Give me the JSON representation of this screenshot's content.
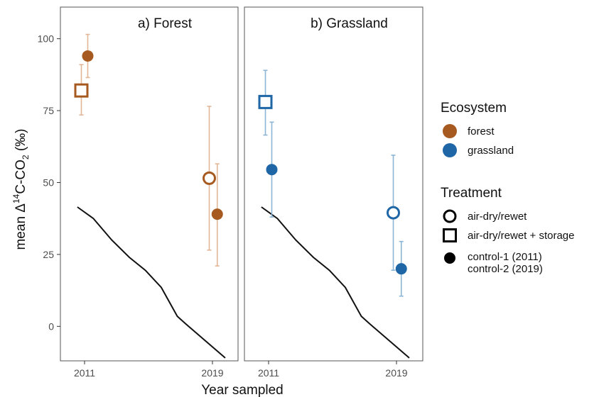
{
  "chart_data": {
    "type": "scatter",
    "ylabel_parts": [
      "mean Δ",
      "14",
      "C-CO",
      "2",
      " (‰)"
    ],
    "xlabel": "Year sampled",
    "ylim": [
      -12,
      111
    ],
    "yticks": [
      0,
      25,
      50,
      75,
      100
    ],
    "xticks": [
      "2011",
      "2019"
    ],
    "grid": false,
    "panels": [
      {
        "title": "a) Forest",
        "ecosystem": "forest",
        "points": [
          {
            "year": 2010.8,
            "treatment": "air-dry/rewet + storage",
            "y": 82,
            "lo": 73.5,
            "hi": 91
          },
          {
            "year": 2011.2,
            "treatment": "control",
            "y": 94,
            "lo": 86.5,
            "hi": 101.5
          },
          {
            "year": 2018.8,
            "treatment": "air-dry/rewet",
            "y": 51.5,
            "lo": 26.5,
            "hi": 76.5
          },
          {
            "year": 2019.3,
            "treatment": "control",
            "y": 39,
            "lo": 21,
            "hi": 56.5
          }
        ]
      },
      {
        "title": "b) Grassland",
        "ecosystem": "grassland",
        "points": [
          {
            "year": 2010.8,
            "treatment": "air-dry/rewet + storage",
            "y": 78,
            "lo": 66.5,
            "hi": 89
          },
          {
            "year": 2011.2,
            "treatment": "control",
            "y": 54.5,
            "lo": 38,
            "hi": 71
          },
          {
            "year": 2018.8,
            "treatment": "air-dry/rewet",
            "y": 39.5,
            "lo": 19.5,
            "hi": 59.5
          },
          {
            "year": 2019.3,
            "treatment": "control",
            "y": 20,
            "lo": 10.5,
            "hi": 29.5
          }
        ]
      }
    ],
    "atmospheric_line": [
      {
        "year": 2010.55,
        "y": 41.5
      },
      {
        "year": 2011.55,
        "y": 37.5
      },
      {
        "year": 2012.7,
        "y": 30
      },
      {
        "year": 2013.8,
        "y": 24
      },
      {
        "year": 2014.8,
        "y": 19.5
      },
      {
        "year": 2015.8,
        "y": 13.5
      },
      {
        "year": 2016.8,
        "y": 3.5
      },
      {
        "year": 2017.3,
        "y": 1
      },
      {
        "year": 2019.8,
        "y": -11
      }
    ],
    "legend": {
      "placement": "right",
      "ecosystem_title": "Ecosystem",
      "ecosystems": [
        {
          "key": "forest",
          "label": "forest",
          "color": "#A65A1F"
        },
        {
          "key": "grassland",
          "label": "grassland",
          "color": "#1F66A6"
        }
      ],
      "treatment_title": "Treatment",
      "treatments": [
        {
          "key": "air-dry/rewet",
          "shape": "open-circle",
          "lines": [
            "air-dry/rewet"
          ]
        },
        {
          "key": "air-dry/rewet + storage",
          "shape": "open-square",
          "lines": [
            "air-dry/rewet + storage"
          ]
        },
        {
          "key": "control",
          "shape": "filled-circle",
          "lines": [
            "control-1 (2011)",
            "control-2 (2019)"
          ]
        }
      ]
    },
    "colors": {
      "forest": "#A65A1F",
      "grassland": "#1F66A6",
      "forest_error": "#E2B697",
      "grassland_error": "#8DB6D6",
      "atmospheric_line": "#111111"
    }
  }
}
